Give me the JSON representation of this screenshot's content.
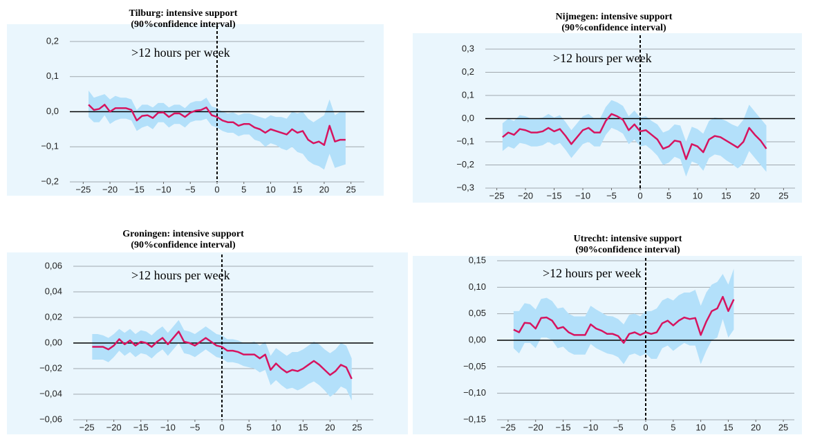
{
  "chart_data": [
    {
      "type": "line",
      "title": "Tilburg: intensive support",
      "subtitle": "(90%confidence interval)",
      "annotation": ">12 hours per week",
      "color": "#d6145f",
      "band_color": "#b3e0fa",
      "background": "#eaf6fd",
      "xlim": [
        -27.5,
        27.5
      ],
      "ylim": [
        -0.2,
        0.2
      ],
      "xticks": [
        {
          "value": -25,
          "label": "−25"
        },
        {
          "value": -20,
          "label": "−20"
        },
        {
          "value": -15,
          "label": "−15"
        },
        {
          "value": -10,
          "label": "−10"
        },
        {
          "value": -5,
          "label": "−5"
        },
        0,
        5,
        10,
        15,
        20,
        25
      ],
      "yticks": [
        {
          "value": -0.2,
          "label": "−0,2"
        },
        {
          "value": -0.1,
          "label": "−0,1"
        },
        {
          "value": 0,
          "label": "0,0"
        },
        {
          "value": 0.1,
          "label": "0,1"
        },
        {
          "value": 0.2,
          "label": "0,2"
        }
      ],
      "x": [
        -24,
        -23,
        -22,
        -21,
        -20,
        -19,
        -18,
        -17,
        -16,
        -15,
        -14,
        -13,
        -12,
        -11,
        -10,
        -9,
        -8,
        -7,
        -6,
        -5,
        -4,
        -3,
        -2,
        -1,
        0,
        1,
        2,
        3,
        4,
        5,
        6,
        7,
        8,
        9,
        10,
        11,
        12,
        13,
        14,
        15,
        16,
        17,
        18,
        19,
        20,
        21,
        22,
        23,
        24
      ],
      "values": [
        0.02,
        0.005,
        0.008,
        0.02,
        0.0,
        0.01,
        0.01,
        0.01,
        0.005,
        -0.025,
        -0.012,
        -0.01,
        -0.018,
        -0.003,
        -0.002,
        -0.015,
        -0.005,
        -0.005,
        -0.015,
        -0.003,
        0.003,
        0.005,
        0.012,
        -0.01,
        -0.015,
        -0.025,
        -0.03,
        -0.03,
        -0.04,
        -0.035,
        -0.035,
        -0.045,
        -0.05,
        -0.06,
        -0.05,
        -0.055,
        -0.06,
        -0.065,
        -0.05,
        -0.06,
        -0.055,
        -0.08,
        -0.09,
        -0.085,
        -0.095,
        -0.04,
        -0.085,
        -0.08,
        -0.08
      ],
      "upper": [
        0.06,
        0.04,
        0.045,
        0.05,
        0.035,
        0.045,
        0.04,
        0.04,
        0.035,
        0.005,
        0.02,
        0.02,
        0.012,
        0.025,
        0.025,
        0.012,
        0.02,
        0.02,
        0.01,
        0.025,
        0.03,
        0.03,
        0.04,
        0.015,
        0.01,
        0.0,
        -0.005,
        -0.002,
        -0.01,
        -0.005,
        -0.005,
        -0.01,
        -0.015,
        -0.02,
        -0.01,
        -0.015,
        -0.015,
        -0.02,
        0.0,
        -0.005,
        0.0,
        -0.02,
        -0.03,
        -0.02,
        -0.01,
        0.035,
        -0.01,
        0.0,
        0.0
      ],
      "lower": [
        -0.015,
        -0.03,
        -0.03,
        -0.01,
        -0.035,
        -0.025,
        -0.02,
        -0.02,
        -0.025,
        -0.055,
        -0.045,
        -0.04,
        -0.05,
        -0.03,
        -0.03,
        -0.045,
        -0.035,
        -0.035,
        -0.045,
        -0.03,
        -0.025,
        -0.025,
        -0.02,
        -0.04,
        -0.045,
        -0.055,
        -0.06,
        -0.06,
        -0.07,
        -0.065,
        -0.065,
        -0.08,
        -0.085,
        -0.1,
        -0.09,
        -0.095,
        -0.105,
        -0.11,
        -0.1,
        -0.115,
        -0.12,
        -0.14,
        -0.15,
        -0.155,
        -0.165,
        -0.12,
        -0.16,
        -0.155,
        -0.15
      ]
    },
    {
      "type": "line",
      "title": "Nijmegen: intensive support",
      "subtitle": "(90%confidence interval)",
      "annotation": ">12 hours per week",
      "color": "#d6145f",
      "band_color": "#b3e0fa",
      "background": "#eaf6fd",
      "xlim": [
        -27,
        27
      ],
      "ylim": [
        -0.3,
        0.3
      ],
      "xticks": [
        {
          "value": -25,
          "label": "−25"
        },
        {
          "value": -20,
          "label": "−20"
        },
        {
          "value": -15,
          "label": "−15"
        },
        {
          "value": -10,
          "label": "−10"
        },
        {
          "value": -5,
          "label": "−5"
        },
        0,
        5,
        10,
        15,
        20,
        25
      ],
      "yticks": [
        {
          "value": -0.3,
          "label": "−0,3"
        },
        {
          "value": -0.2,
          "label": "−0,2"
        },
        {
          "value": -0.1,
          "label": "−0,1"
        },
        {
          "value": 0,
          "label": "0,0"
        },
        {
          "value": 0.1,
          "label": "0,1"
        },
        {
          "value": 0.2,
          "label": "0,2"
        },
        {
          "value": 0.3,
          "label": "0,3"
        }
      ],
      "x": [
        -24,
        -23,
        -22,
        -21,
        -20,
        -19,
        -18,
        -17,
        -16,
        -15,
        -14,
        -13,
        -12,
        -11,
        -10,
        -9,
        -8,
        -7,
        -6,
        -5,
        -4,
        -3,
        -2,
        -1,
        0,
        1,
        2,
        3,
        4,
        5,
        6,
        7,
        8,
        9,
        10,
        11,
        12,
        13,
        14,
        15,
        16,
        17,
        18,
        19,
        20,
        21,
        22
      ],
      "values": [
        -0.08,
        -0.06,
        -0.07,
        -0.045,
        -0.05,
        -0.06,
        -0.06,
        -0.055,
        -0.04,
        -0.055,
        -0.045,
        -0.075,
        -0.11,
        -0.08,
        -0.05,
        -0.04,
        -0.06,
        -0.06,
        -0.01,
        0.02,
        0.01,
        -0.005,
        -0.05,
        -0.025,
        -0.055,
        -0.05,
        -0.07,
        -0.09,
        -0.13,
        -0.12,
        -0.095,
        -0.1,
        -0.175,
        -0.11,
        -0.12,
        -0.145,
        -0.09,
        -0.075,
        -0.08,
        -0.095,
        -0.11,
        -0.125,
        -0.1,
        -0.04,
        -0.07,
        -0.095,
        -0.13
      ],
      "upper": [
        -0.02,
        0.0,
        -0.01,
        0.015,
        0.01,
        0.0,
        0.0,
        0.005,
        0.02,
        0.005,
        0.015,
        -0.015,
        -0.05,
        -0.02,
        0.01,
        0.02,
        0.0,
        0.0,
        0.05,
        0.08,
        0.07,
        0.055,
        0.01,
        0.035,
        0.005,
        0.01,
        -0.01,
        -0.025,
        -0.06,
        -0.05,
        -0.025,
        -0.03,
        -0.1,
        -0.035,
        -0.045,
        -0.065,
        -0.01,
        0.005,
        0.0,
        -0.01,
        -0.025,
        -0.035,
        -0.005,
        0.06,
        0.03,
        0.0,
        -0.03
      ],
      "lower": [
        -0.14,
        -0.12,
        -0.13,
        -0.105,
        -0.11,
        -0.12,
        -0.12,
        -0.115,
        -0.1,
        -0.115,
        -0.105,
        -0.135,
        -0.17,
        -0.14,
        -0.11,
        -0.1,
        -0.12,
        -0.12,
        -0.07,
        -0.04,
        -0.05,
        -0.065,
        -0.11,
        -0.09,
        -0.12,
        -0.115,
        -0.135,
        -0.16,
        -0.2,
        -0.19,
        -0.165,
        -0.175,
        -0.25,
        -0.185,
        -0.195,
        -0.225,
        -0.17,
        -0.155,
        -0.16,
        -0.18,
        -0.195,
        -0.215,
        -0.195,
        -0.14,
        -0.17,
        -0.2,
        -0.23
      ]
    },
    {
      "type": "line",
      "title": "Groningen: intensive support",
      "subtitle": "(90%confidence interval)",
      "annotation": ">12 hours per week",
      "color": "#d6145f",
      "band_color": "#b3e0fa",
      "background": "#eaf6fd",
      "xlim": [
        -27.5,
        28
      ],
      "ylim": [
        -0.06,
        0.06
      ],
      "xticks": [
        {
          "value": -25,
          "label": "−25"
        },
        {
          "value": -20,
          "label": "−20"
        },
        {
          "value": -15,
          "label": "−15"
        },
        {
          "value": -10,
          "label": "−10"
        },
        {
          "value": -5,
          "label": "−5"
        },
        0,
        5,
        10,
        15,
        20,
        25
      ],
      "yticks": [
        {
          "value": -0.06,
          "label": "−0,06"
        },
        {
          "value": -0.04,
          "label": "−0,04"
        },
        {
          "value": -0.02,
          "label": "−0,02"
        },
        {
          "value": 0,
          "label": "0,00"
        },
        {
          "value": 0.02,
          "label": "0,02"
        },
        {
          "value": 0.04,
          "label": "0,04"
        },
        {
          "value": 0.06,
          "label": "0,06"
        }
      ],
      "x": [
        -24,
        -23,
        -22,
        -21,
        -20,
        -19,
        -18,
        -17,
        -16,
        -15,
        -14,
        -13,
        -12,
        -11,
        -10,
        -9,
        -8,
        -7,
        -6,
        -5,
        -4,
        -3,
        -2,
        -1,
        0,
        1,
        2,
        3,
        4,
        5,
        6,
        7,
        8,
        9,
        10,
        11,
        12,
        13,
        14,
        15,
        16,
        17,
        18,
        19,
        20,
        21,
        22,
        23,
        24
      ],
      "values": [
        -0.003,
        -0.003,
        -0.003,
        -0.005,
        -0.002,
        0.003,
        -0.001,
        0.002,
        -0.002,
        0.001,
        0.0,
        -0.003,
        0.001,
        0.004,
        -0.001,
        0.004,
        0.009,
        0.001,
        0.0,
        -0.002,
        0.001,
        0.004,
        0.001,
        -0.002,
        -0.003,
        -0.006,
        -0.006,
        -0.007,
        -0.009,
        -0.009,
        -0.009,
        -0.012,
        -0.009,
        -0.021,
        -0.016,
        -0.02,
        -0.023,
        -0.021,
        -0.022,
        -0.02,
        -0.017,
        -0.014,
        -0.017,
        -0.021,
        -0.025,
        -0.022,
        -0.017,
        -0.019,
        -0.028
      ],
      "upper": [
        0.007,
        0.007,
        0.006,
        0.004,
        0.007,
        0.011,
        0.008,
        0.011,
        0.007,
        0.01,
        0.009,
        0.006,
        0.01,
        0.013,
        0.008,
        0.013,
        0.018,
        0.01,
        0.009,
        0.007,
        0.01,
        0.013,
        0.01,
        0.007,
        0.006,
        0.003,
        0.003,
        0.002,
        0.0,
        0.0,
        0.001,
        -0.002,
        0.001,
        -0.01,
        -0.004,
        -0.007,
        -0.01,
        -0.007,
        -0.007,
        -0.005,
        -0.002,
        0.001,
        -0.001,
        -0.005,
        -0.008,
        -0.005,
        0.0,
        -0.002,
        -0.012
      ],
      "lower": [
        -0.013,
        -0.013,
        -0.013,
        -0.015,
        -0.011,
        -0.006,
        -0.01,
        -0.007,
        -0.011,
        -0.008,
        -0.009,
        -0.012,
        -0.008,
        -0.005,
        -0.01,
        -0.005,
        0.0,
        -0.008,
        -0.009,
        -0.011,
        -0.008,
        -0.005,
        -0.008,
        -0.011,
        -0.012,
        -0.015,
        -0.015,
        -0.016,
        -0.018,
        -0.019,
        -0.02,
        -0.023,
        -0.021,
        -0.033,
        -0.029,
        -0.033,
        -0.036,
        -0.035,
        -0.037,
        -0.035,
        -0.032,
        -0.03,
        -0.033,
        -0.037,
        -0.042,
        -0.039,
        -0.034,
        -0.036,
        -0.045
      ]
    },
    {
      "type": "line",
      "title": "Utrecht: intensive support",
      "subtitle": "(90%confidence interval)",
      "annotation": ">12 hours per week",
      "color": "#d6145f",
      "band_color": "#b3e0fa",
      "background": "#eaf6fd",
      "xlim": [
        -27,
        27
      ],
      "ylim": [
        -0.15,
        0.15
      ],
      "xticks": [
        {
          "value": -25,
          "label": "−25"
        },
        {
          "value": -20,
          "label": "−20"
        },
        {
          "value": -15,
          "label": "−15"
        },
        {
          "value": -10,
          "label": "−10"
        },
        {
          "value": -5,
          "label": "−5"
        },
        0,
        5,
        10,
        15,
        20,
        25
      ],
      "yticks": [
        {
          "value": -0.15,
          "label": "−0,15"
        },
        {
          "value": -0.1,
          "label": "−0,10"
        },
        {
          "value": -0.05,
          "label": "−0,05"
        },
        {
          "value": 0,
          "label": "0,00"
        },
        {
          "value": 0.05,
          "label": "0,05"
        },
        {
          "value": 0.1,
          "label": "0,10"
        },
        {
          "value": 0.15,
          "label": "0,15"
        }
      ],
      "x": [
        -24,
        -23,
        -22,
        -21,
        -20,
        -19,
        -18,
        -17,
        -16,
        -15,
        -14,
        -13,
        -12,
        -11,
        -10,
        -9,
        -8,
        -7,
        -6,
        -5,
        -4,
        -3,
        -2,
        -1,
        0,
        1,
        2,
        3,
        4,
        5,
        6,
        7,
        8,
        9,
        10,
        11,
        12,
        13,
        14,
        15,
        16
      ],
      "values": [
        0.02,
        0.015,
        0.033,
        0.032,
        0.022,
        0.042,
        0.043,
        0.037,
        0.022,
        0.025,
        0.015,
        0.01,
        0.01,
        0.01,
        0.03,
        0.022,
        0.018,
        0.012,
        0.012,
        0.008,
        -0.005,
        0.012,
        0.015,
        0.01,
        0.015,
        0.012,
        0.015,
        0.032,
        0.037,
        0.028,
        0.037,
        0.043,
        0.04,
        0.042,
        0.01,
        0.035,
        0.055,
        0.06,
        0.082,
        0.055,
        0.077
      ],
      "upper": [
        0.055,
        0.055,
        0.07,
        0.068,
        0.058,
        0.078,
        0.08,
        0.074,
        0.06,
        0.062,
        0.05,
        0.045,
        0.045,
        0.045,
        0.065,
        0.058,
        0.052,
        0.046,
        0.045,
        0.04,
        0.03,
        0.048,
        0.05,
        0.045,
        0.055,
        0.055,
        0.06,
        0.075,
        0.08,
        0.075,
        0.085,
        0.09,
        0.09,
        0.095,
        0.065,
        0.09,
        0.105,
        0.11,
        0.125,
        0.105,
        0.135
      ],
      "lower": [
        -0.015,
        -0.025,
        -0.005,
        -0.005,
        -0.015,
        0.005,
        0.005,
        0.0,
        -0.015,
        -0.012,
        -0.022,
        -0.027,
        -0.027,
        -0.027,
        -0.007,
        -0.015,
        -0.02,
        -0.025,
        -0.027,
        -0.032,
        -0.045,
        -0.028,
        -0.025,
        -0.03,
        -0.025,
        -0.035,
        -0.035,
        -0.015,
        -0.01,
        -0.02,
        -0.012,
        -0.005,
        -0.01,
        -0.01,
        -0.045,
        -0.02,
        0.0,
        0.005,
        0.04,
        0.005,
        0.02
      ]
    }
  ]
}
